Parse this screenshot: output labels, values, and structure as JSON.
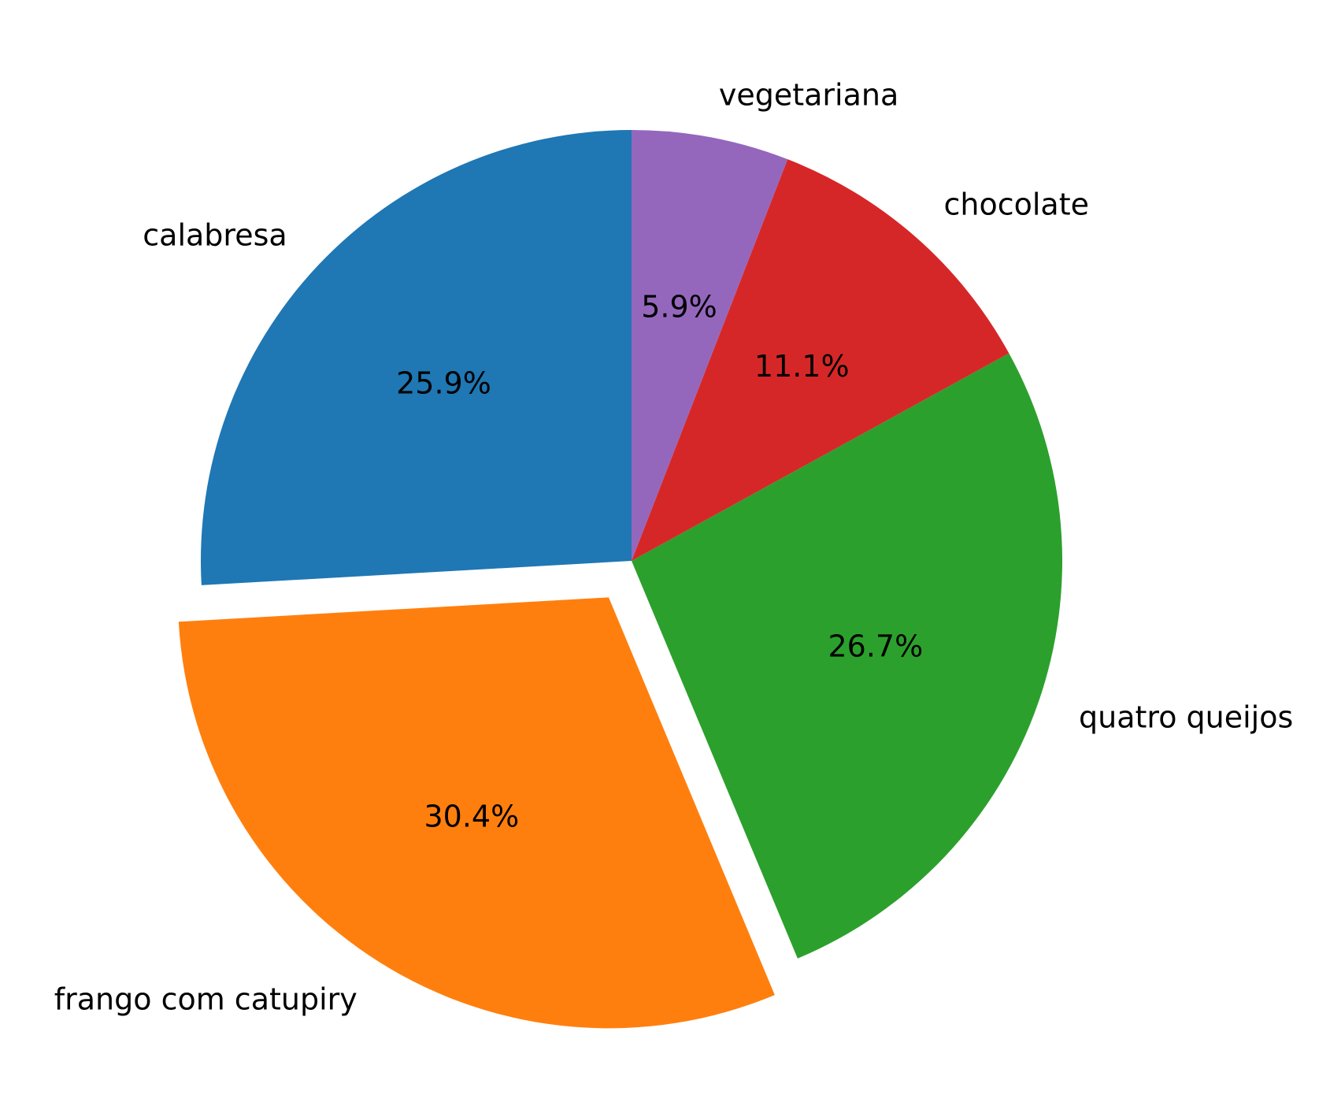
{
  "chart_data": {
    "type": "pie",
    "title": "",
    "slices": [
      {
        "label": "calabresa",
        "value": 25.9,
        "pct_label": "25.9%",
        "color": "#1f77b4",
        "exploded": false
      },
      {
        "label": "frango com catupiry",
        "value": 30.4,
        "pct_label": "30.4%",
        "color": "#ff7f0e",
        "exploded": true
      },
      {
        "label": "quatro queijos",
        "value": 26.7,
        "pct_label": "26.7%",
        "color": "#2ca02c",
        "exploded": false
      },
      {
        "label": "chocolate",
        "value": 11.1,
        "pct_label": "11.1%",
        "color": "#d62728",
        "exploded": false
      },
      {
        "label": "vegetariana",
        "value": 5.9,
        "pct_label": "5.9%",
        "color": "#9467bd",
        "exploded": false
      }
    ],
    "start_angle_deg": 90,
    "direction": "counterclockwise",
    "legend": "none"
  }
}
